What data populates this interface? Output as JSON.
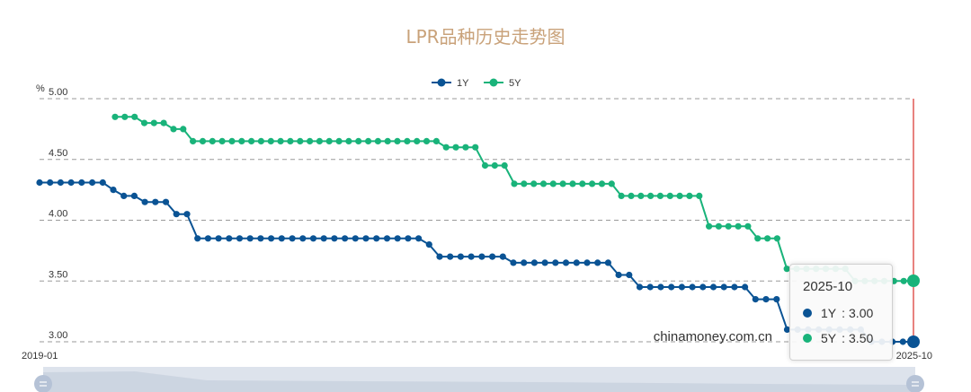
{
  "chart_data": {
    "type": "line",
    "title": "LPR品种历史走势图",
    "ylabel": "%",
    "ylim": [
      3.0,
      5.0
    ],
    "yticks": [
      "5.00",
      "4.50",
      "4.00",
      "3.50",
      "3.00"
    ],
    "x_start_label": "2019-01",
    "x_end_label": "2025-10",
    "legend_position": "top-center",
    "grid": "dashed horizontal",
    "watermark": "chinamoney.com.cn",
    "series": [
      {
        "name": "1Y",
        "color": "#0a5394",
        "values": [
          4.31,
          4.31,
          4.31,
          4.31,
          4.31,
          4.31,
          4.31,
          4.25,
          4.2,
          4.2,
          4.15,
          4.15,
          4.15,
          4.05,
          4.05,
          3.85,
          3.85,
          3.85,
          3.85,
          3.85,
          3.85,
          3.85,
          3.85,
          3.85,
          3.85,
          3.85,
          3.85,
          3.85,
          3.85,
          3.85,
          3.85,
          3.85,
          3.85,
          3.85,
          3.85,
          3.85,
          3.85,
          3.8,
          3.7,
          3.7,
          3.7,
          3.7,
          3.7,
          3.7,
          3.7,
          3.65,
          3.65,
          3.65,
          3.65,
          3.65,
          3.65,
          3.65,
          3.65,
          3.65,
          3.65,
          3.55,
          3.55,
          3.45,
          3.45,
          3.45,
          3.45,
          3.45,
          3.45,
          3.45,
          3.45,
          3.45,
          3.45,
          3.45,
          3.35,
          3.35,
          3.35,
          3.1,
          3.1,
          3.1,
          3.1,
          3.1,
          3.1,
          3.1,
          3.1,
          3.0,
          3.0,
          3.0,
          3.0,
          3.0
        ]
      },
      {
        "name": "5Y",
        "color": "#19b37a",
        "values": [
          4.85,
          4.85,
          4.85,
          4.8,
          4.8,
          4.8,
          4.75,
          4.75,
          4.65,
          4.65,
          4.65,
          4.65,
          4.65,
          4.65,
          4.65,
          4.65,
          4.65,
          4.65,
          4.65,
          4.65,
          4.65,
          4.65,
          4.65,
          4.65,
          4.65,
          4.65,
          4.65,
          4.65,
          4.65,
          4.65,
          4.65,
          4.65,
          4.65,
          4.65,
          4.6,
          4.6,
          4.6,
          4.6,
          4.45,
          4.45,
          4.45,
          4.3,
          4.3,
          4.3,
          4.3,
          4.3,
          4.3,
          4.3,
          4.3,
          4.3,
          4.3,
          4.3,
          4.2,
          4.2,
          4.2,
          4.2,
          4.2,
          4.2,
          4.2,
          4.2,
          4.2,
          3.95,
          3.95,
          3.95,
          3.95,
          3.95,
          3.85,
          3.85,
          3.85,
          3.6,
          3.6,
          3.6,
          3.6,
          3.6,
          3.6,
          3.6,
          3.5,
          3.5,
          3.5,
          3.5,
          3.5,
          3.5,
          3.5
        ]
      }
    ]
  },
  "tooltip": {
    "date": "2025-10",
    "rows": [
      {
        "name": "1Y",
        "sep": ":",
        "value": "3.00",
        "color": "#0a5394"
      },
      {
        "name": "5Y",
        "sep": ":",
        "value": "3.50",
        "color": "#19b37a"
      }
    ]
  },
  "crosshair_color": "#d9302a",
  "slider_colors": {
    "background": "#dde3ec",
    "handle": "#b5c2d6"
  }
}
